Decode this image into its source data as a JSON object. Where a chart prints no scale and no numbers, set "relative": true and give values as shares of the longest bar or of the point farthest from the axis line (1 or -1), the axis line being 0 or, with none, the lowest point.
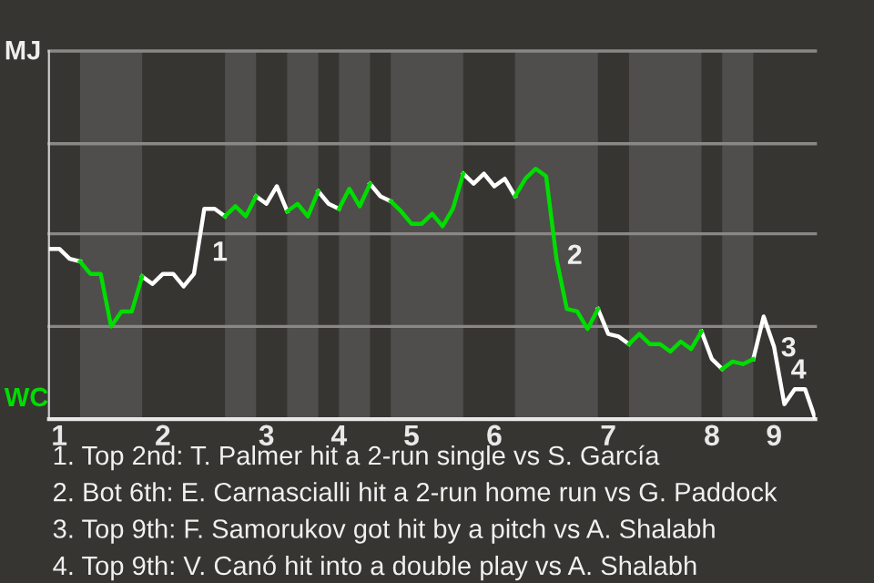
{
  "chart_data": {
    "type": "line",
    "relative": true,
    "categories": [
      null,
      "1",
      null,
      null,
      null,
      null,
      null,
      null,
      null,
      null,
      null,
      "2",
      null,
      null,
      null,
      null,
      null,
      null,
      null,
      null,
      null,
      "3",
      null,
      null,
      null,
      null,
      null,
      null,
      "4",
      null,
      null,
      null,
      null,
      null,
      null,
      "5",
      null,
      null,
      null,
      null,
      null,
      null,
      null,
      "6",
      null,
      null,
      null,
      null,
      null,
      null,
      null,
      null,
      null,
      null,
      "7",
      null,
      null,
      null,
      null,
      null,
      null,
      null,
      null,
      null,
      "8",
      null,
      null,
      null,
      null,
      null,
      "9",
      null,
      null,
      null,
      null
    ],
    "series": [
      {
        "color": "#ffffff",
        "values": [
          0.68,
          0.68,
          0.64,
          0.63,
          null,
          null,
          null,
          null,
          null,
          0.57,
          0.54,
          0.58,
          0.58,
          0.53,
          0.58,
          0.84,
          0.84,
          0.81,
          null,
          null,
          0.89,
          0.86,
          0.93,
          0.83,
          null,
          null,
          0.91,
          0.86,
          0.84,
          null,
          null,
          0.94,
          0.89,
          0.87,
          null,
          null,
          null,
          null,
          null,
          null,
          0.98,
          0.94,
          0.98,
          0.93,
          0.96,
          0.89,
          null,
          null,
          null,
          null,
          null,
          null,
          null,
          0.44,
          0.34,
          0.33,
          0.3,
          null,
          null,
          null,
          null,
          null,
          null,
          0.35,
          0.24,
          0.2,
          null,
          null,
          0.24,
          0.41,
          0.29,
          0.06,
          0.12,
          0.12,
          0
        ]
      },
      {
        "color": "#00dd00",
        "values": [
          null,
          null,
          null,
          0.63,
          0.58,
          0.58,
          0.37,
          0.43,
          0.43,
          0.57,
          null,
          null,
          null,
          null,
          null,
          null,
          null,
          0.81,
          0.85,
          0.81,
          0.89,
          null,
          null,
          0.83,
          0.86,
          0.81,
          0.91,
          null,
          0.84,
          0.92,
          0.85,
          0.94,
          null,
          0.87,
          0.83,
          0.78,
          0.78,
          0.82,
          0.77,
          0.84,
          0.98,
          null,
          null,
          null,
          null,
          0.89,
          0.96,
          1,
          0.97,
          0.64,
          0.44,
          0.43,
          0.36,
          0.44,
          null,
          null,
          0.3,
          0.34,
          0.3,
          0.3,
          0.27,
          0.31,
          0.28,
          0.35,
          null,
          0.2,
          0.23,
          0.22,
          0.24,
          null,
          null,
          null,
          null,
          null,
          null
        ]
      }
    ],
    "ref_lines": [
      {
        "axis": "y",
        "value": 0.37,
        "color": "#8a8886"
      },
      {
        "axis": "y",
        "value": 0.74,
        "color": "#8a8886"
      },
      {
        "axis": "y",
        "value": 1.1,
        "color": "#8a8886"
      },
      {
        "axis": "y",
        "value": 1.47,
        "color": "#8a8886"
      }
    ],
    "annotations": [
      "MJ",
      "WC",
      "1",
      "2",
      "3",
      "4",
      "1. Top 2nd: T. Palmer hit a 2-run single vs S. García",
      "2. Bot 6th: E. Carnascialli hit a 2-run home run vs G. Paddock",
      "3. Top 9th: F. Samorukov got hit by a pitch vs A. Shalabh",
      "4. Top 9th: V. Canó hit into a double play vs A. Shalabh"
    ],
    "legend": false
  }
}
